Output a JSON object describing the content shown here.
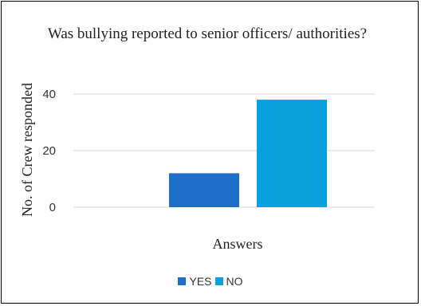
{
  "chart_data": {
    "type": "bar",
    "title": "Was bullying reported to senior officers/ authorities?",
    "xlabel": "Answers",
    "ylabel": "No. of Crew responded",
    "ylim": [
      0,
      40
    ],
    "yticks": [
      0,
      20,
      40
    ],
    "grid": true,
    "legend": "bottom",
    "series": [
      {
        "name": "YES",
        "values": [
          12
        ],
        "color": "#1f6fca"
      },
      {
        "name": "NO",
        "values": [
          38
        ],
        "color": "#0aa0dd"
      }
    ]
  }
}
